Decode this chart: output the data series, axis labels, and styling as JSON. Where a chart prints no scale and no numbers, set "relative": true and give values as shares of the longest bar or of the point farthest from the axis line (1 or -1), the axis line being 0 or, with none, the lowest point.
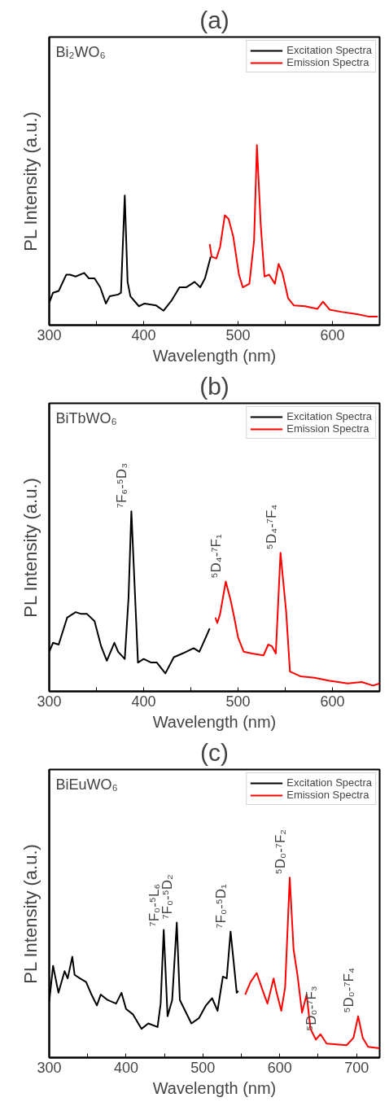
{
  "chart_data": [
    {
      "type": "line",
      "title": "(a)",
      "xlabel": "Wavelength (nm)",
      "ylabel": "PL Intensity (a.u.)",
      "xlim": [
        300,
        650
      ],
      "xticks": [
        300,
        {
          "value": 350,
          "label": null
        },
        400,
        {
          "value": 450,
          "label": null
        },
        500,
        {
          "value": 550,
          "label": null
        },
        600
      ],
      "relative": true,
      "legend": "top right",
      "grid": false,
      "annotations": [
        "Bi₂WO₆"
      ],
      "series": [
        {
          "name": "Excitation Spectra",
          "color": "#000000",
          "x": [
            300,
            304,
            310,
            318,
            322,
            328,
            337,
            342,
            348,
            354,
            360,
            364,
            373,
            376,
            380,
            383,
            386,
            395,
            401,
            413,
            421,
            430,
            438,
            445,
            454,
            460,
            465,
            471
          ],
          "values": [
            0.124,
            0.18,
            0.19,
            0.28,
            0.28,
            0.27,
            0.29,
            0.26,
            0.26,
            0.21,
            0.12,
            0.16,
            0.17,
            0.18,
            0.72,
            0.24,
            0.16,
            0.105,
            0.12,
            0.11,
            0.08,
            0.14,
            0.21,
            0.21,
            0.24,
            0.21,
            0.26,
            0.38
          ]
        },
        {
          "name": "Emission Spectra",
          "color": "#ff0000",
          "x": [
            470,
            472,
            477,
            481,
            486,
            490,
            495,
            501,
            505,
            512,
            517,
            520,
            524,
            528,
            533,
            539,
            543,
            547,
            553,
            559,
            571,
            584,
            590,
            597,
            609,
            626,
            638,
            648
          ],
          "values": [
            0.45,
            0.38,
            0.37,
            0.435,
            0.61,
            0.59,
            0.49,
            0.28,
            0.21,
            0.23,
            0.47,
            1.0,
            0.56,
            0.27,
            0.28,
            0.23,
            0.34,
            0.29,
            0.15,
            0.11,
            0.105,
            0.09,
            0.13,
            0.086,
            0.074,
            0.061,
            0.048,
            0.048
          ]
        }
      ]
    },
    {
      "type": "line",
      "title": "(b)",
      "xlabel": "Wavelength (nm)",
      "ylabel": "PL Intensity (a.u.)",
      "xlim": [
        300,
        650
      ],
      "xticks": [
        300,
        {
          "value": 350,
          "label": null
        },
        400,
        {
          "value": 450,
          "label": null
        },
        500,
        {
          "value": 550,
          "label": null
        },
        600
      ],
      "relative": true,
      "legend": "top right",
      "grid": false,
      "annotations": [
        "BiTbWO₆",
        {
          "text": "⁷F₆-⁵D₃",
          "x": 387,
          "y": 1.0
        },
        {
          "text": "⁵D₄-⁷F₁",
          "x": 487,
          "y": 0.61
        },
        {
          "text": "⁵D₄-⁷F₄",
          "x": 545,
          "y": 0.77
        }
      ],
      "series": [
        {
          "name": "Excitation Spectra",
          "color": "#000000",
          "x": [
            300,
            304,
            310,
            319,
            328,
            334,
            340,
            348,
            355,
            361,
            369,
            373,
            380,
            384,
            387,
            391,
            394,
            400,
            408,
            414,
            423,
            432,
            441,
            453,
            459,
            465,
            470
          ],
          "values": [
            0.22,
            0.27,
            0.26,
            0.41,
            0.44,
            0.43,
            0.43,
            0.39,
            0.25,
            0.17,
            0.27,
            0.22,
            0.18,
            0.52,
            1.0,
            0.52,
            0.16,
            0.18,
            0.16,
            0.16,
            0.1,
            0.19,
            0.21,
            0.24,
            0.22,
            0.29,
            0.35
          ]
        },
        {
          "name": "Emission Spectra",
          "color": "#ff0000",
          "x": [
            476,
            478,
            481,
            487,
            492,
            496,
            500,
            506,
            515,
            527,
            532,
            536,
            540,
            545,
            551,
            555,
            566,
            581,
            596,
            616,
            631,
            643,
            650
          ],
          "values": [
            0.41,
            0.38,
            0.43,
            0.61,
            0.51,
            0.41,
            0.3,
            0.22,
            0.21,
            0.2,
            0.26,
            0.25,
            0.21,
            0.77,
            0.44,
            0.11,
            0.084,
            0.076,
            0.06,
            0.044,
            0.052,
            0.032,
            0.044
          ]
        }
      ]
    },
    {
      "type": "line",
      "title": "(c)",
      "xlabel": "Wavelength (nm)",
      "ylabel": "PL Intensity (a.u.)",
      "xlim": [
        300,
        730
      ],
      "xticks": [
        300,
        {
          "value": 350,
          "label": null
        },
        400,
        {
          "value": 450,
          "label": null
        },
        500,
        {
          "value": 550,
          "label": null
        },
        600,
        {
          "value": 650,
          "label": null
        },
        700
      ],
      "relative": true,
      "legend": "top right",
      "grid": false,
      "annotations": [
        "BiEuWO₆",
        {
          "text": "⁷F₀-⁵L₆",
          "x": 449,
          "y": 0.71
        },
        {
          "text": "⁷F₀-⁵D₂",
          "x": 466,
          "y": 0.75
        },
        {
          "text": "⁷F₀-⁵D₁",
          "x": 536,
          "y": 0.7
        },
        {
          "text": "⁵D₀-⁷F₂",
          "x": 613,
          "y": 1.0
        },
        {
          "text": "⁵D₀-⁷F₃",
          "x": 653,
          "y": 0.13
        },
        {
          "text": "⁵D₀-⁷F₄",
          "x": 702,
          "y": 0.23
        }
      ],
      "series": [
        {
          "name": "Excitation Spectra",
          "color": "#000000",
          "x": [
            300,
            305,
            312,
            320,
            324,
            330,
            333,
            340,
            348,
            355,
            362,
            367,
            376,
            387,
            394,
            400,
            409,
            420,
            429,
            441,
            445,
            449,
            454,
            460,
            466,
            470,
            485,
            495,
            504,
            512,
            519,
            526,
            531,
            536,
            541,
            544,
            546
          ],
          "values": [
            0.31,
            0.51,
            0.36,
            0.48,
            0.44,
            0.56,
            0.46,
            0.44,
            0.42,
            0.35,
            0.29,
            0.35,
            0.32,
            0.3,
            0.36,
            0.27,
            0.24,
            0.16,
            0.19,
            0.17,
            0.3,
            0.71,
            0.23,
            0.32,
            0.75,
            0.32,
            0.19,
            0.22,
            0.29,
            0.33,
            0.26,
            0.45,
            0.44,
            0.7,
            0.49,
            0.36,
            0.37
          ]
        },
        {
          "name": "Emission Spectra",
          "color": "#ff0000",
          "x": [
            555,
            562,
            570,
            578,
            584,
            592,
            596,
            602,
            607,
            613,
            618,
            623,
            629,
            635,
            640,
            647,
            653,
            661,
            687,
            696,
            702,
            708,
            715,
            730
          ],
          "values": [
            0.35,
            0.42,
            0.47,
            0.37,
            0.3,
            0.44,
            0.36,
            0.26,
            0.39,
            1.0,
            0.6,
            0.46,
            0.25,
            0.35,
            0.16,
            0.1,
            0.13,
            0.078,
            0.069,
            0.11,
            0.23,
            0.11,
            0.06,
            0.052
          ]
        }
      ]
    }
  ]
}
